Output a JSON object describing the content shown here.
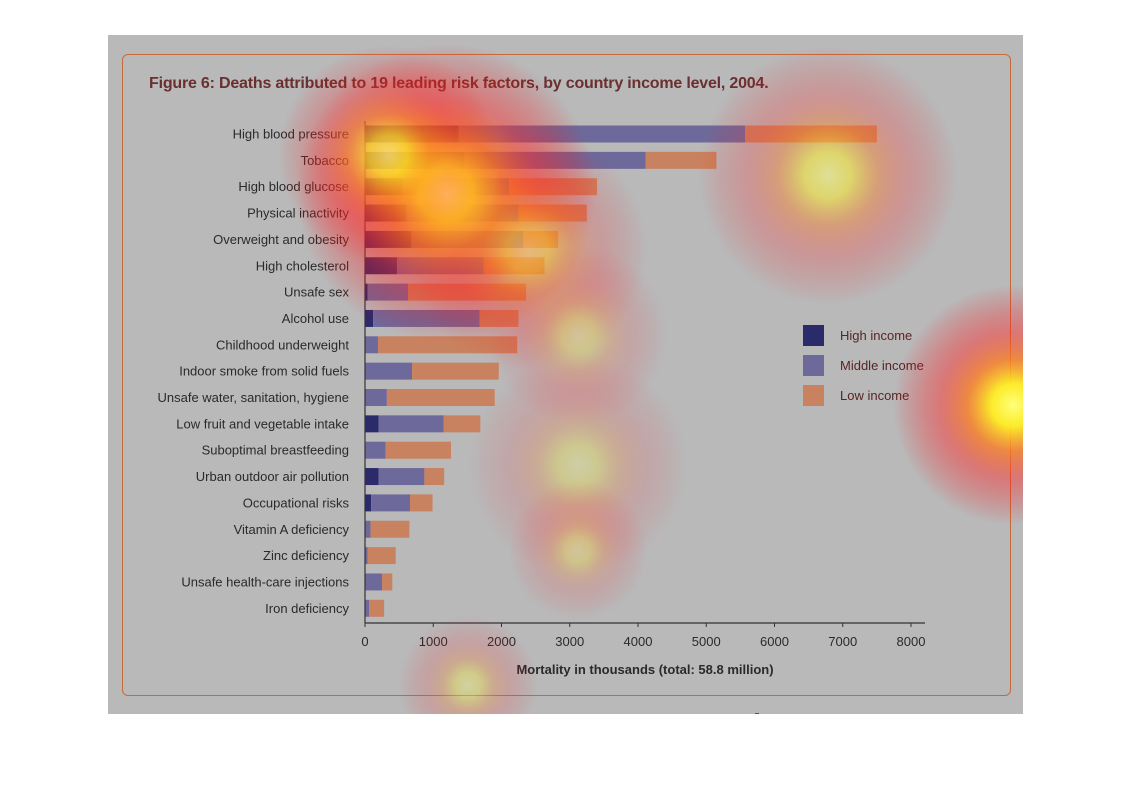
{
  "figure": {
    "title": "Figure 6: Deaths attributed to 19 leading risk factors, by country income level, 2004."
  },
  "chart_data": {
    "type": "bar",
    "orientation": "horizontal",
    "stacked": true,
    "title": "Figure 6: Deaths attributed to 19 leading risk factors, by country income level, 2004.",
    "xlabel": "Mortality in thousands (total: 58.8 million)",
    "ylabel": "",
    "xlim": [
      0,
      8000
    ],
    "xticks": [
      0,
      1000,
      2000,
      3000,
      4000,
      5000,
      6000,
      7000,
      8000
    ],
    "categories": [
      "High blood pressure",
      "Tobacco",
      "High blood glucose",
      "Physical inactivity",
      "Overweight and obesity",
      "High cholesterol",
      "Unsafe sex",
      "Alcohol use",
      "Childhood underweight",
      "Indoor smoke from solid fuels",
      "Unsafe water, sanitation, hygiene",
      "Low fruit and vegetable intake",
      "Suboptimal breastfeeding",
      "Urban outdoor air pollution",
      "Occupational risks",
      "Vitamin A deficiency",
      "Zinc deficiency",
      "Unsafe health-care injections",
      "Iron deficiency"
    ],
    "series": [
      {
        "name": "High income",
        "color": "#2b2a6b",
        "values": [
          1370,
          1460,
          560,
          610,
          680,
          470,
          40,
          120,
          0,
          0,
          0,
          200,
          0,
          200,
          90,
          0,
          0,
          0,
          0
        ]
      },
      {
        "name": "Middle income",
        "color": "#6d6a9b",
        "values": [
          4200,
          2650,
          1550,
          1640,
          1640,
          1270,
          590,
          1560,
          190,
          690,
          320,
          950,
          300,
          670,
          570,
          80,
          40,
          250,
          60
        ]
      },
      {
        "name": "Low income",
        "color": "#c9825f",
        "values": [
          1930,
          1040,
          1290,
          1000,
          510,
          890,
          1730,
          570,
          2040,
          1270,
          1580,
          540,
          960,
          290,
          330,
          570,
          410,
          150,
          220
        ]
      }
    ],
    "grid": false,
    "legend_position": "right"
  },
  "heatmap_overlay": {
    "hotspots": [
      {
        "cx": 338,
        "cy": 158,
        "r": 150,
        "intensity": 1.0
      },
      {
        "cx": 280,
        "cy": 120,
        "r": 110,
        "intensity": 0.7
      },
      {
        "cx": 720,
        "cy": 140,
        "r": 130,
        "intensity": 0.55
      },
      {
        "cx": 420,
        "cy": 215,
        "r": 120,
        "intensity": 0.45
      },
      {
        "cx": 905,
        "cy": 370,
        "r": 120,
        "intensity": 1.0
      },
      {
        "cx": 470,
        "cy": 430,
        "r": 110,
        "intensity": 0.3
      },
      {
        "cx": 470,
        "cy": 515,
        "r": 70,
        "intensity": 0.3
      },
      {
        "cx": 360,
        "cy": 650,
        "r": 70,
        "intensity": 0.35
      },
      {
        "cx": 470,
        "cy": 300,
        "r": 90,
        "intensity": 0.3
      }
    ]
  }
}
